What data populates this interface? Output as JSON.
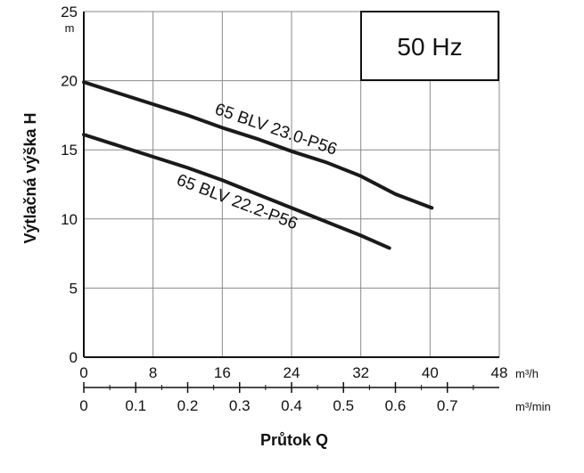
{
  "chart_data": {
    "type": "line",
    "frequency_label": "50 Hz",
    "ylabel": "Výtlačná výška H",
    "y_unit": "m",
    "ylim": [
      0,
      25
    ],
    "y_ticks": [
      0,
      5,
      10,
      15,
      20,
      25
    ],
    "xlabel": "Průtok Q",
    "x_unit_primary": "m³/h",
    "xlim_primary": [
      0,
      48
    ],
    "x_ticks_primary": [
      0,
      8,
      16,
      24,
      32,
      40,
      48
    ],
    "x_unit_secondary": "m³/min",
    "xlim_secondary": [
      0,
      0.8
    ],
    "x_ticks_secondary": [
      "0",
      "0.1",
      "0.2",
      "0.3",
      "0.4",
      "0.5",
      "0.6",
      "0.7"
    ],
    "x_ticks_secondary_values": [
      0,
      0.1,
      0.2,
      0.3,
      0.4,
      0.5,
      0.6,
      0.7
    ],
    "grid": true,
    "series": [
      {
        "name": "65 BLV 23.0-P56",
        "x": [
          0,
          4,
          8,
          12,
          16,
          20,
          24,
          28,
          32,
          36,
          40.2
        ],
        "y": [
          19.9,
          19.1,
          18.3,
          17.5,
          16.6,
          15.8,
          14.9,
          14.1,
          13.1,
          11.8,
          10.8
        ]
      },
      {
        "name": "65 BLV 22.2-P56",
        "x": [
          0,
          4,
          8,
          12,
          16,
          20,
          24,
          28,
          32,
          35.3
        ],
        "y": [
          16.1,
          15.3,
          14.5,
          13.7,
          12.8,
          11.8,
          10.8,
          9.8,
          8.8,
          7.9
        ]
      }
    ]
  }
}
